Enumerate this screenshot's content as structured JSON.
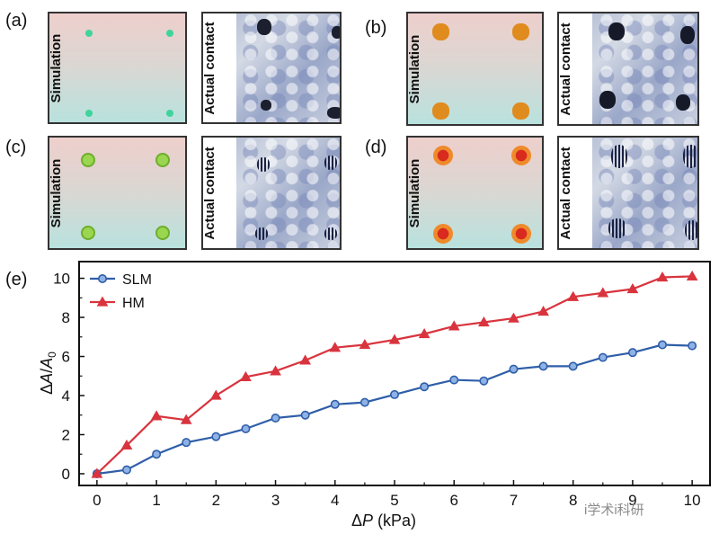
{
  "panels": [
    {
      "letter": "(a)",
      "sim_label": "Simulation",
      "act_label": "Actual contact"
    },
    {
      "letter": "(b)",
      "sim_label": "Simulation",
      "act_label": "Actual contact"
    },
    {
      "letter": "(c)",
      "sim_label": "Simulation",
      "act_label": "Actual contact"
    },
    {
      "letter": "(d)",
      "sim_label": "Simulation",
      "act_label": "Actual contact"
    }
  ],
  "chart_panel_letter": "(e)",
  "watermark": "i学术i科研",
  "colors": {
    "SLM": "#2f5ea8",
    "HM": "#d9343e",
    "sim_green": "#3fd49b",
    "sim_orange": "#e08b1e"
  },
  "chart_data": {
    "type": "line",
    "xlabel": "ΔP (kPa)",
    "ylabel": "ΔA/A0",
    "xlim": [
      -0.3,
      10.3
    ],
    "ylim": [
      -0.6,
      10.9
    ],
    "xticks": [
      0,
      1,
      2,
      3,
      4,
      5,
      6,
      7,
      8,
      9,
      10
    ],
    "yticks": [
      0,
      2,
      4,
      6,
      8,
      10
    ],
    "legend_position": "top-left",
    "x": [
      0,
      0.5,
      1,
      1.5,
      2,
      2.5,
      3,
      3.5,
      4,
      4.5,
      5,
      5.5,
      6,
      6.5,
      7,
      7.5,
      8,
      8.5,
      9,
      9.5,
      10
    ],
    "series": [
      {
        "name": "SLM",
        "marker": "circle",
        "values": [
          0,
          0.2,
          1.0,
          1.6,
          1.9,
          2.3,
          2.85,
          3.0,
          3.55,
          3.65,
          4.05,
          4.45,
          4.8,
          4.75,
          5.35,
          5.5,
          5.5,
          5.95,
          6.2,
          6.6,
          6.55
        ]
      },
      {
        "name": "HM",
        "marker": "triangle",
        "values": [
          0,
          1.45,
          2.95,
          2.75,
          4.0,
          4.95,
          5.25,
          5.8,
          6.45,
          6.6,
          6.85,
          7.15,
          7.55,
          7.75,
          7.95,
          8.3,
          9.05,
          9.25,
          9.45,
          10.05,
          10.1
        ]
      }
    ]
  }
}
